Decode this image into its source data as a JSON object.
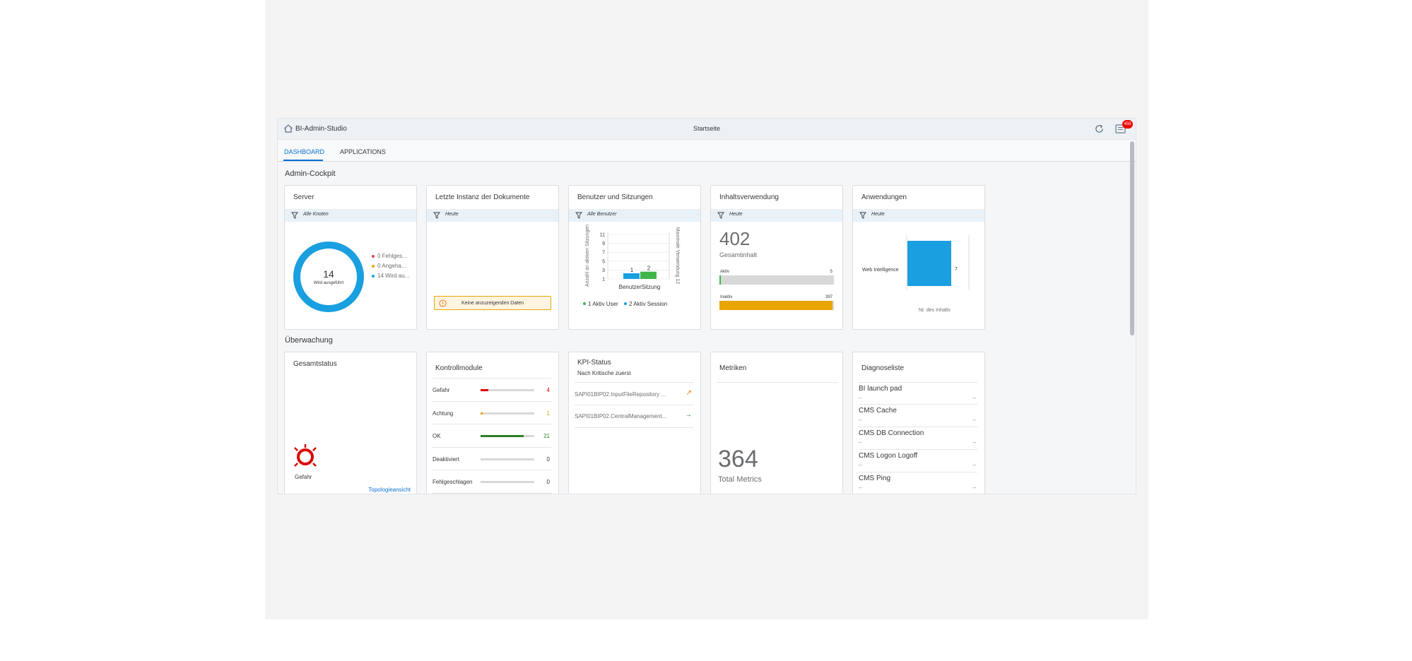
{
  "shell": {
    "app_title": "BI-Admin-Studio",
    "page_title": "Startseite",
    "notification_count": "459"
  },
  "tabs": [
    {
      "label": "DASHBOARD",
      "active": true
    },
    {
      "label": "APPLICATIONS",
      "active": false
    }
  ],
  "admin_cockpit": {
    "title": "Admin-Cockpit",
    "server": {
      "title": "Server",
      "filter": "Alle Knoten",
      "donut_value": "14",
      "donut_label": "Wird ausgeführt",
      "legend": [
        {
          "text": "0 Fehlges...",
          "color": "#e34352"
        },
        {
          "text": "0 Angeha...",
          "color": "#e9a400"
        },
        {
          "text": "14 Wird au...",
          "color": "#1a9fe0"
        }
      ]
    },
    "documents": {
      "title": "Letzte Instanz der Dokumente",
      "filter": "Heute",
      "no_data": "Keine anzuzeigenden Daten"
    },
    "users": {
      "title": "Benutzer und Sitzungen",
      "filter": "Alle Benutzer",
      "y_label_left": "Anzahl an aktiven Sitzungen",
      "y_label_right": "Maximale Verwendung 12",
      "y_ticks": [
        "11",
        "9",
        "7",
        "5",
        "3",
        "1"
      ],
      "bars": [
        {
          "category": "Benutzer",
          "value": 1,
          "color": "#1a9fe0"
        },
        {
          "category": "Sitzung",
          "value": 2,
          "color": "#3fb54a"
        }
      ],
      "x_label": "BenutzerSitzung",
      "legend": [
        {
          "text": "1 Aktiv User",
          "color": "#3fb54a"
        },
        {
          "text": "2 Aktiv Session",
          "color": "#1a9fe0"
        }
      ]
    },
    "content": {
      "title": "Inhaltsverwendung",
      "filter": "Heute",
      "total": "402",
      "total_label": "Gesamtinhalt",
      "active_label": "Aktiv",
      "active_value": "5",
      "active_fraction": 0.012,
      "inactive_label": "Inaktiv",
      "inactive_value": "397",
      "inactive_fraction": 0.988
    },
    "apps": {
      "title": "Anwendungen",
      "filter": "Heute",
      "category": "Web Intelligence",
      "value": "7",
      "x_label": "Nr. des Inhalts"
    }
  },
  "monitoring": {
    "title": "Überwachung",
    "overall": {
      "title": "Gesamtstatus",
      "status": "Gefahr",
      "link": "Topologieansicht"
    },
    "probes": {
      "title": "Kontrollmodule",
      "rows": [
        {
          "label": "Gefahr",
          "value": "4",
          "fraction": 0.15,
          "color": "#e00000"
        },
        {
          "label": "Achtung",
          "value": "1",
          "fraction": 0.04,
          "color": "#e9a400"
        },
        {
          "label": "OK",
          "value": "21",
          "fraction": 0.8,
          "color": "#2b7d2b"
        },
        {
          "label": "Deaktiviert",
          "value": "0",
          "fraction": 0,
          "color": "#32363a"
        },
        {
          "label": "Fehlgeschlagen",
          "value": "0",
          "fraction": 0,
          "color": "#32363a"
        }
      ]
    },
    "kpi": {
      "title": "KPI-Status",
      "subtitle": "Nach Kritische zuerst",
      "rows": [
        {
          "text": "SAPI01BIP02.InputFileRepository ...",
          "trend": "↗",
          "color": "#e9730c"
        },
        {
          "text": "SAPI01BIP02.CentralManagement...",
          "trend": "→",
          "color": "#2b7d2b"
        }
      ]
    },
    "metrics": {
      "title": "Metriken",
      "value": "364",
      "label": "Total Metrics"
    },
    "diagnostics": {
      "title": "Diagnoseliste",
      "rows": [
        {
          "name": "BI launch pad",
          "left": "--",
          "right": "--"
        },
        {
          "name": "CMS Cache",
          "left": "--",
          "right": "--"
        },
        {
          "name": "CMS DB Connection",
          "left": "--",
          "right": "--"
        },
        {
          "name": "CMS Logon Logoff",
          "left": "--",
          "right": "--"
        },
        {
          "name": "CMS Ping",
          "left": "--",
          "right": "--"
        }
      ]
    }
  }
}
